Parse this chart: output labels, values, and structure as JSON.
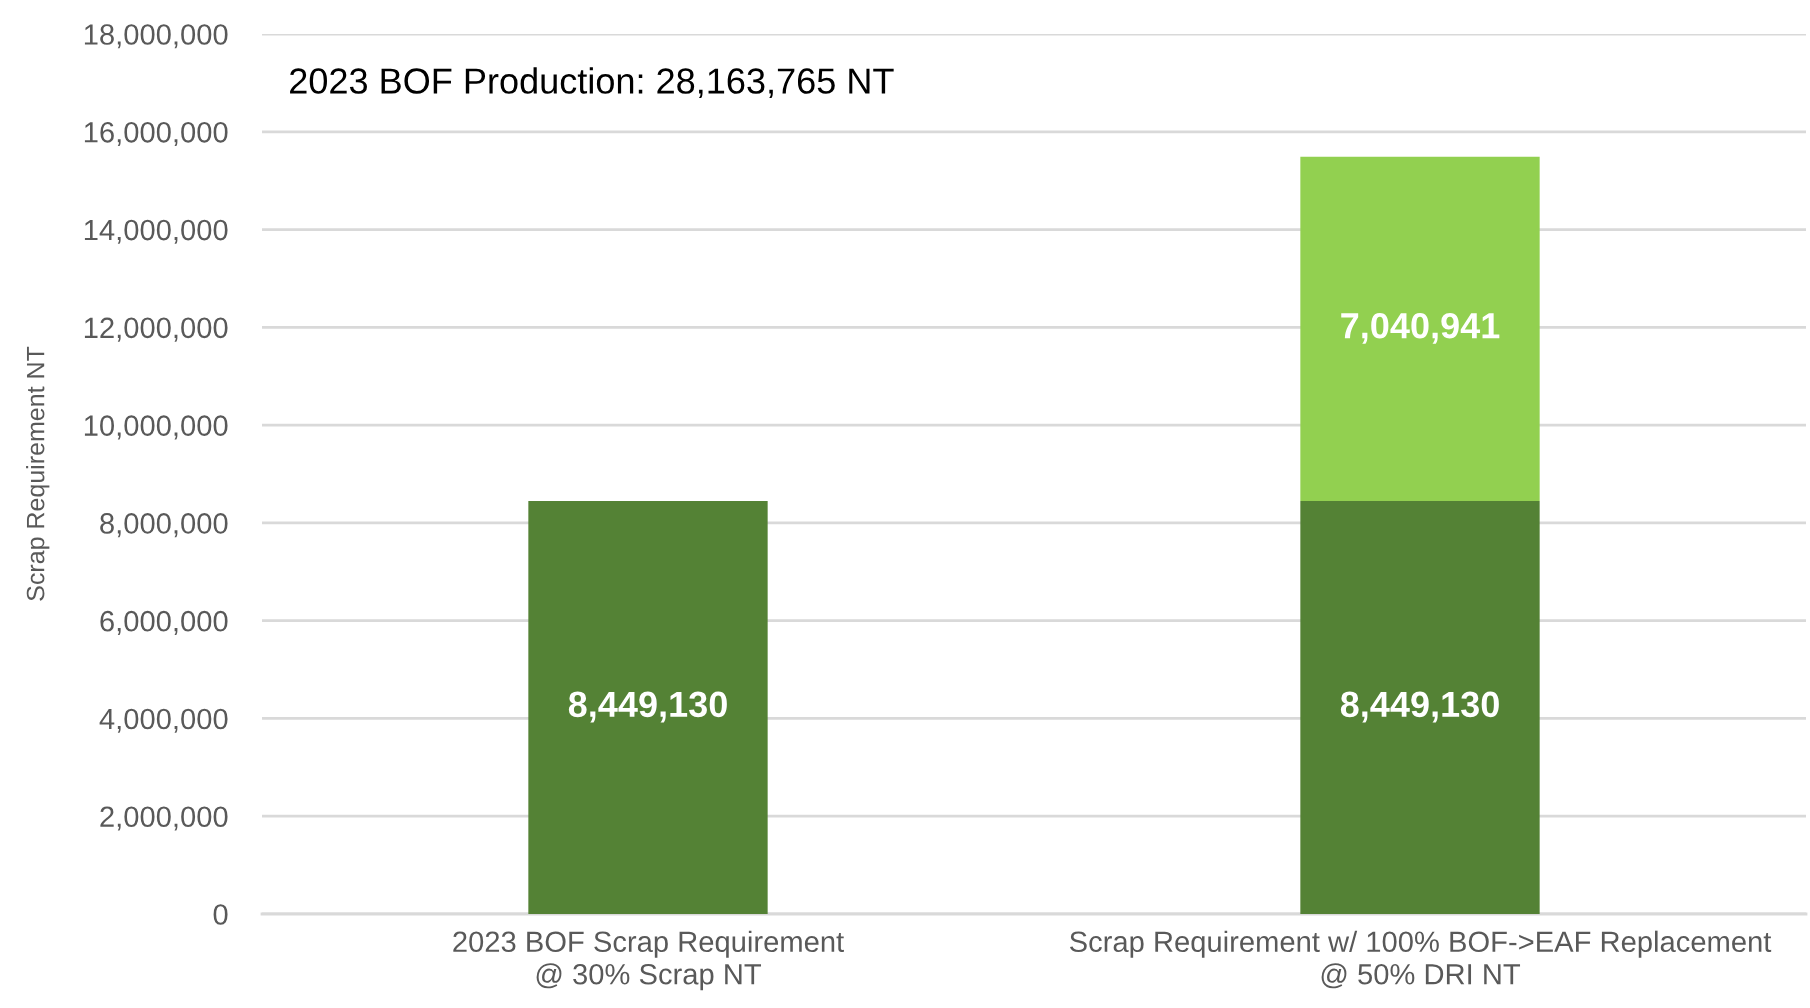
{
  "chart_data": {
    "type": "bar",
    "stacked": true,
    "annotations": [
      "2023 BOF Production: 28,163,765 NT"
    ],
    "ylabel": "Scrap Requirement NT",
    "categories": [
      "2023 BOF Scrap Requirement\n@ 30% Scrap NT",
      "Scrap Requirement w/ 100% BOF->EAF Replacement\n@ 50% DRI NT"
    ],
    "series": [
      {
        "color": "#548235",
        "values": [
          8449130,
          8449130
        ],
        "value_labels": [
          "8,449,130",
          "8,449,130"
        ]
      },
      {
        "color": "#92d050",
        "values": [
          null,
          7040941
        ],
        "value_labels": [
          null,
          "7,040,941"
        ]
      }
    ],
    "ylim": [
      0,
      18000000
    ],
    "yticks": [
      {
        "value": 0,
        "label": "0"
      },
      {
        "value": 2000000,
        "label": "2,000,000"
      },
      {
        "value": 4000000,
        "label": "4,000,000"
      },
      {
        "value": 6000000,
        "label": "6,000,000"
      },
      {
        "value": 8000000,
        "label": "8,000,000"
      },
      {
        "value": 10000000,
        "label": "10,000,000"
      },
      {
        "value": 12000000,
        "label": "12,000,000"
      },
      {
        "value": 14000000,
        "label": "14,000,000"
      },
      {
        "value": 16000000,
        "label": "16,000,000"
      },
      {
        "value": 18000000,
        "label": "18,000,000"
      }
    ],
    "grid": "y"
  }
}
